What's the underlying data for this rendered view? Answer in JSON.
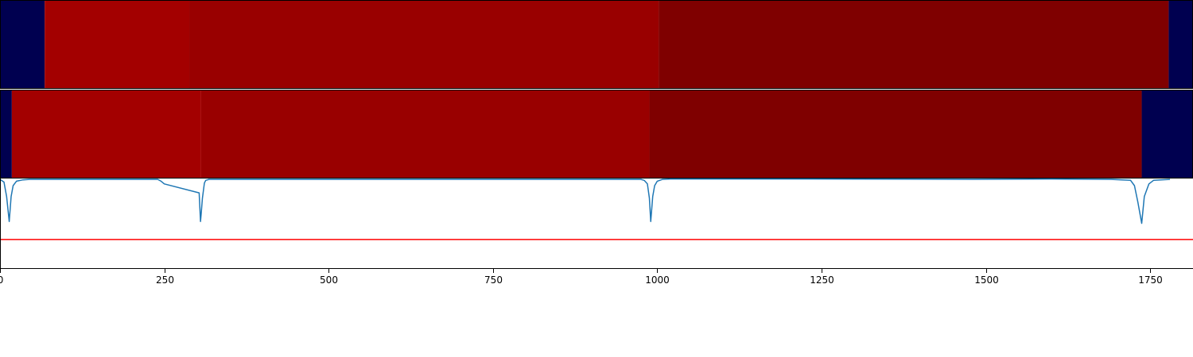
{
  "chart_data": [
    {
      "type": "heatmap",
      "xlim": [
        0,
        1815
      ],
      "segments": [
        {
          "start": 0,
          "end": 68,
          "color": "#000050"
        },
        {
          "start": 68,
          "end": 288,
          "color": "#a30000"
        },
        {
          "start": 288,
          "end": 1002,
          "color": "#990000"
        },
        {
          "start": 1002,
          "end": 1778,
          "color": "#7f0000"
        },
        {
          "start": 1778,
          "end": 1815,
          "color": "#000050"
        }
      ]
    },
    {
      "type": "heatmap",
      "xlim": [
        0,
        1815
      ],
      "segments": [
        {
          "start": 0,
          "end": 18,
          "color": "#000050"
        },
        {
          "start": 18,
          "end": 306,
          "color": "#a30000"
        },
        {
          "start": 306,
          "end": 988,
          "color": "#990000"
        },
        {
          "start": 988,
          "end": 1737,
          "color": "#7f0000"
        },
        {
          "start": 1737,
          "end": 1815,
          "color": "#000050"
        }
      ]
    },
    {
      "type": "line",
      "xlim": [
        0,
        1815
      ],
      "ylim": [
        -1.0,
        0.0
      ],
      "xticks": [
        0,
        250,
        500,
        750,
        1000,
        1250,
        1500,
        1750
      ],
      "threshold": {
        "y": -0.68,
        "color": "#ff0000"
      },
      "series": [
        {
          "color": "#1f77b4",
          "x": [
            0,
            6,
            10,
            14,
            17,
            20,
            25,
            35,
            45,
            55,
            240,
            245,
            250,
            303,
            304,
            305,
            306,
            308,
            311,
            313,
            318,
            335,
            345,
            960,
            975,
            980,
            985,
            988,
            990,
            993,
            996,
            1000,
            1008,
            1020,
            1200,
            1480,
            1600,
            1690,
            1720,
            1726,
            1731,
            1737,
            1741,
            1748,
            1755,
            1780
          ],
          "y": [
            -0.01,
            -0.04,
            -0.2,
            -0.48,
            -0.2,
            -0.08,
            -0.03,
            -0.015,
            -0.01,
            -0.01,
            -0.01,
            -0.03,
            -0.06,
            -0.16,
            -0.31,
            -0.48,
            -0.4,
            -0.22,
            -0.05,
            -0.02,
            -0.01,
            -0.01,
            -0.01,
            -0.01,
            -0.01,
            -0.02,
            -0.06,
            -0.22,
            -0.48,
            -0.2,
            -0.08,
            -0.03,
            -0.01,
            -0.005,
            -0.005,
            -0.01,
            -0.005,
            -0.01,
            -0.02,
            -0.08,
            -0.26,
            -0.5,
            -0.2,
            -0.06,
            -0.02,
            -0.01
          ]
        }
      ]
    }
  ]
}
